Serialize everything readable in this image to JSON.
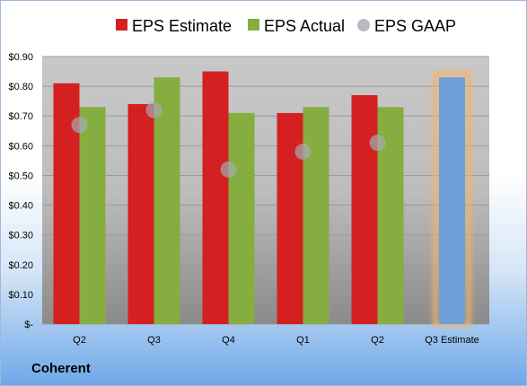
{
  "company": "Coherent",
  "colors": {
    "estimate": "#d42020",
    "actual": "#86ad40",
    "gaap": "#a6a9b3",
    "future": "#6f9fd8",
    "future_glow": "#f5b26b"
  },
  "chart_data": {
    "type": "bar",
    "categories": [
      "Q2",
      "Q3",
      "Q4",
      "Q1",
      "Q2",
      "Q3 Estimate"
    ],
    "series": [
      {
        "name": "EPS Estimate",
        "values": [
          0.81,
          0.74,
          0.85,
          0.71,
          0.77,
          null
        ]
      },
      {
        "name": "EPS Actual",
        "values": [
          0.73,
          0.83,
          0.71,
          0.73,
          0.73,
          0.83
        ]
      },
      {
        "name": "EPS GAAP",
        "values": [
          0.67,
          0.72,
          0.52,
          0.58,
          0.61,
          null
        ],
        "marker": "circle"
      }
    ],
    "highlighted_category": "Q3 Estimate",
    "ylim": [
      0,
      0.9
    ],
    "yticks": [
      0,
      0.1,
      0.2,
      0.3,
      0.4,
      0.5,
      0.6,
      0.7,
      0.8,
      0.9
    ],
    "ytick_labels": [
      "$-",
      "$0.10",
      "$0.20",
      "$0.30",
      "$0.40",
      "$0.50",
      "$0.60",
      "$0.70",
      "$0.80",
      "$0.90"
    ],
    "legend_position": "top",
    "grid": true
  }
}
